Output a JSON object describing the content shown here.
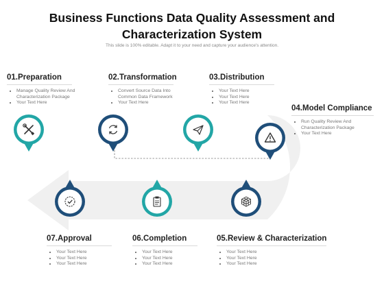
{
  "title_line1": "Business Functions Data Quality Assessment and",
  "title_line2": "Characterization System",
  "subtitle": "This slide is 100% editable. Adapt it to your need and capture your audience's attention.",
  "colors": {
    "teal": "#22a6a6",
    "navy": "#1f4e79",
    "arrow": "#f0f0f0",
    "rule": "#d9d9d9"
  },
  "steps": [
    {
      "head": "01.Preparation",
      "items": [
        "Manage Quality Review And Characterization Package",
        "Your Text Here"
      ],
      "icon": "tools-icon",
      "color": "teal"
    },
    {
      "head": "02.Transformation",
      "items": [
        "Convert Source Data Into Common Data Framework",
        "Your Text Here"
      ],
      "icon": "refresh-icon",
      "color": "navy"
    },
    {
      "head": "03.Distribution",
      "items": [
        "Your Text Here",
        "Your Text Here",
        "Your Text Here"
      ],
      "icon": "paper-plane-icon",
      "color": "teal"
    },
    {
      "head": "04.Model Compliance",
      "items": [
        "Run Quality Review And Characterization Package",
        "Your Text Here"
      ],
      "icon": "warning-icon",
      "color": "navy"
    },
    {
      "head": "05.Review & Characterization",
      "items": [
        "Your Text Here",
        "Your Text Here",
        "Your Text Here"
      ],
      "icon": "cube-icon",
      "color": "navy"
    },
    {
      "head": "06.Completion",
      "items": [
        "Your Text Here",
        "Your Text Here",
        "Your Text Here"
      ],
      "icon": "clipboard-icon",
      "color": "teal"
    },
    {
      "head": "07.Approval",
      "items": [
        "Your Text Here",
        "Your Text Here",
        "Your Text Here"
      ],
      "icon": "check-circle-icon",
      "color": "navy"
    }
  ]
}
